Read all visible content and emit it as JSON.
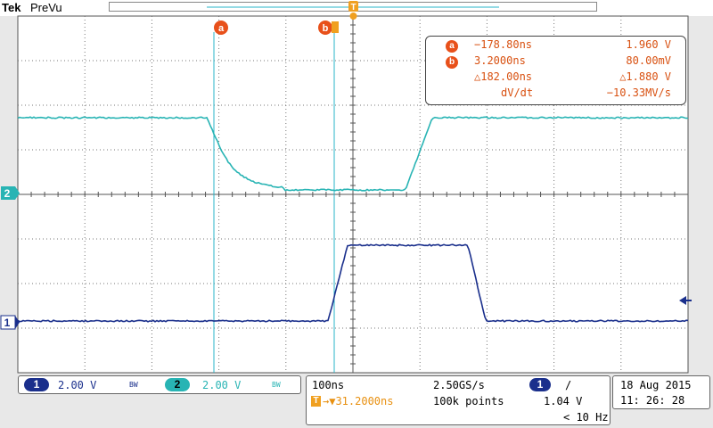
{
  "header": {
    "brand": "Tek",
    "mode": "PreVu"
  },
  "trigger_marker": "T",
  "channels": {
    "ch2_marker": "2",
    "ch1_marker": "1"
  },
  "cursors": {
    "a_label": "a",
    "b_label": "b",
    "readout": {
      "a_time": "−178.80ns",
      "a_volt": "1.960 V",
      "b_time": "3.2000ns",
      "b_volt": "80.00mV",
      "delta_time": "△182.00ns",
      "delta_volt": "△1.880 V",
      "dvdt_label": "dV/dt",
      "dvdt_value": "−10.33MV/s"
    }
  },
  "channel_panel": {
    "ch1_num": "1",
    "ch1_scale": "2.00 V",
    "ch1_bw": "BW",
    "ch2_num": "2",
    "ch2_scale": "2.00 V",
    "ch2_bw": "BW"
  },
  "timebase_panel": {
    "timebase": "100ns",
    "sample_rate": "2.50GS/s",
    "trigger_ch": "1",
    "trigger_slope": "/",
    "trigger_pos": "→▼31.2000ns",
    "record": "100k points",
    "trigger_level": "1.04 V",
    "trigger_freq": "< 10 Hz"
  },
  "date_panel": {
    "date": "18 Aug  2015",
    "time": "11: 26: 28"
  },
  "colors": {
    "ch1": "#1a2f8c",
    "ch2": "#28b4b4",
    "cursor": "#28b4c8",
    "accent": "#e8501a",
    "trigger": "#f0a020"
  }
}
